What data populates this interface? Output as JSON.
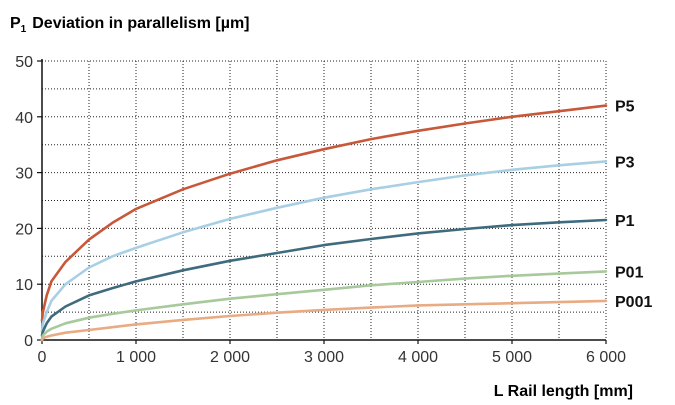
{
  "chart_data": {
    "type": "line",
    "title": "",
    "ylabel": {
      "symbol": "P",
      "subscript": "1",
      "text": "Deviation in parallelism [µm]"
    },
    "xlabel": "L Rail length [mm]",
    "xlim": [
      0,
      6000
    ],
    "ylim": [
      0,
      50
    ],
    "xticks": [
      0,
      1000,
      2000,
      3000,
      4000,
      5000,
      6000
    ],
    "xtick_labels": [
      "0",
      "1 000",
      "2 000",
      "3 000",
      "4 000",
      "5 000",
      "6 000"
    ],
    "yticks": [
      0,
      10,
      20,
      30,
      40,
      50
    ],
    "ytick_labels": [
      "0",
      "10",
      "20",
      "30",
      "40",
      "50"
    ],
    "grid": true,
    "legend": "labels at right end of each line",
    "x": [
      0,
      10,
      50,
      100,
      250,
      500,
      750,
      1000,
      1500,
      2000,
      2500,
      3000,
      3500,
      4000,
      4500,
      5000,
      5500,
      6000
    ],
    "series": [
      {
        "name": "P5",
        "color": "#c8583a",
        "values": [
          3.5,
          5,
          8,
          10.5,
          14,
          18,
          21,
          23.5,
          27,
          29.8,
          32.2,
          34.2,
          36,
          37.5,
          38.8,
          40,
          41,
          42
        ]
      },
      {
        "name": "P3",
        "color": "#a8cfe3",
        "values": [
          1.5,
          3,
          5,
          7,
          10,
          13,
          15,
          16.5,
          19.3,
          21.7,
          23.7,
          25.5,
          27,
          28.3,
          29.5,
          30.5,
          31.3,
          32
        ]
      },
      {
        "name": "P1",
        "color": "#3f6b7e",
        "values": [
          0.8,
          1.5,
          3,
          4.2,
          6,
          8,
          9.3,
          10.5,
          12.5,
          14.2,
          15.6,
          17,
          18.1,
          19.1,
          19.9,
          20.6,
          21.1,
          21.5
        ]
      },
      {
        "name": "P01",
        "color": "#a7c99b",
        "values": [
          0.2,
          0.8,
          1.5,
          2,
          3,
          4,
          4.7,
          5.3,
          6.4,
          7.4,
          8.2,
          9,
          9.8,
          10.4,
          11,
          11.5,
          11.9,
          12.3
        ]
      },
      {
        "name": "P001",
        "color": "#e8ab84",
        "values": [
          0,
          0.3,
          0.6,
          0.8,
          1.3,
          1.8,
          2.3,
          2.8,
          3.6,
          4.3,
          4.9,
          5.4,
          5.8,
          6.2,
          6.4,
          6.6,
          6.8,
          7
        ]
      }
    ]
  }
}
